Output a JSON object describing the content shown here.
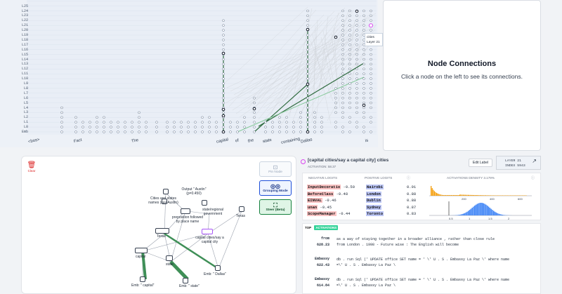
{
  "graph": {
    "layers": [
      "Emb",
      "L0",
      "L1",
      "L2",
      "L3",
      "L4",
      "L5",
      "L6",
      "L7",
      "L8",
      "L9",
      "L10",
      "L11",
      "L12",
      "L13",
      "L14",
      "L15",
      "L16",
      "L17",
      "L18",
      "L19",
      "L20",
      "L21",
      "L22",
      "L23",
      "L24",
      "L25",
      "L26"
    ],
    "tokens": [
      "<bos>",
      "Fact",
      "",
      "The",
      "capital",
      "of",
      "the",
      "state",
      "containing",
      "Dallas",
      "is"
    ],
    "tooltip": {
      "line1": "cities",
      "line2": "Layer 21"
    }
  },
  "node_connections": {
    "title": "Node Connections",
    "hint": "Click a node on the left to see its connections."
  },
  "subgraph": {
    "clear_label": "Clear",
    "pin_node": "Pin Node",
    "grouping_mode": "Grouping Mode",
    "steer": "Steer (Beta)",
    "nodes": {
      "output": "Output \" Austin\" (p=0.450)",
      "cities_names": "Cities and states names (say Austin)",
      "preposition": "preposition followed by place name",
      "state_gov": "state/regional government",
      "texas_right": "Texas",
      "texas_left": "Texas",
      "capital_cities": "capital cities/say a capital city",
      "capital": "capital",
      "state": "state",
      "emb_dallas": "Emb: \" Dallas\"",
      "emb_capital": "Emb: \" capital\"",
      "emb_state": "Emb: \" state\""
    }
  },
  "feature": {
    "title": "[capital cities/say a capital city] cities",
    "activation": "ACTIVATION: 58.37",
    "edit_label": "Edit Label",
    "layer": "LAYER 21",
    "index": "INDEX 5943",
    "neg_header": "NEGATIVE LOGITS",
    "pos_header": "POSITIVE LOGITS",
    "density_header": "ACTIVATIONS DENSITY 3.179%",
    "neg_logits": [
      {
        "token": "InputDecoratio",
        "value": "-0.50"
      },
      {
        "token": "BeforeClass",
        "value": "-0.48"
      },
      {
        "token": "EINVAL",
        "value": "-0.46"
      },
      {
        "token": "unan",
        "value": "-0.45"
      },
      {
        "token": "ScopeManager",
        "value": "-0.44"
      }
    ],
    "pos_logits": [
      {
        "token": "Nairobi",
        "value": "0.91"
      },
      {
        "token": "London",
        "value": "0.88"
      },
      {
        "token": "Dublin",
        "value": "0.88"
      },
      {
        "token": "Sydney",
        "value": "0.87"
      },
      {
        "token": "Toronto",
        "value": "0.83"
      }
    ],
    "density_ticks1": [
      "200",
      "400",
      "600"
    ],
    "density_ticks2": [
      "0.5",
      "1",
      "1.5",
      "2"
    ]
  },
  "top_activations": {
    "tab_top": "TOP",
    "tab_activations": "ACTIVATIONS",
    "rows": [
      {
        "token": "from",
        "value": "628.23",
        "line1": "as a way of staying together in a broader alliance , rather than close rule",
        "line2": "from London . 1998 - Future wise : The English will become"
      },
      {
        "token": "Embassy",
        "value": "622.43",
        "line1": "db . run Sql (' UPDATE office SET name = ' \\' U . S . Embassy La Paz \\' where name",
        "line2": "=\\' U . S . Embassy La Paz \\"
      },
      {
        "token": "Embassy",
        "value": "614.84",
        "line1": "db . run Sql (' UPDATE office SET name = ' \\' U . S . Embassy La Paz \\' where name",
        "line2": "=\\' U . S . Embassy La Paz \\"
      }
    ]
  },
  "colors": {
    "accent_green": "#15803d",
    "accent_blue": "#1d4ed8",
    "neg": "#f9c2c2",
    "pos": "#bcc6f5"
  }
}
